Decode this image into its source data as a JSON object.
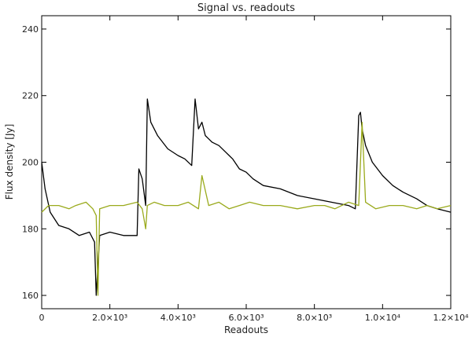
{
  "chart_data": {
    "type": "line",
    "title": "Signal vs. readouts",
    "xlabel": "Readouts",
    "ylabel": "Flux density [Jy]",
    "xlim": [
      0,
      12000
    ],
    "ylim": [
      156,
      244
    ],
    "grid": false,
    "legend": "none",
    "x_ticks": [
      {
        "value": 0,
        "label": "0"
      },
      {
        "value": 2000,
        "label": "2.0×10³"
      },
      {
        "value": 4000,
        "label": "4.0×10³"
      },
      {
        "value": 6000,
        "label": "6.0×10³"
      },
      {
        "value": 8000,
        "label": "8.0×10³"
      },
      {
        "value": 10000,
        "label": "1.0×10⁴"
      },
      {
        "value": 12000,
        "label": "1.2×10⁴"
      }
    ],
    "y_ticks": [
      {
        "value": 160,
        "label": "160"
      },
      {
        "value": 180,
        "label": "180"
      },
      {
        "value": 200,
        "label": "200"
      },
      {
        "value": 220,
        "label": "220"
      },
      {
        "value": 240,
        "label": "240"
      }
    ],
    "series": [
      {
        "color": "#000000",
        "x": [
          0,
          100,
          250,
          500,
          800,
          1100,
          1400,
          1550,
          1600,
          1700,
          2000,
          2400,
          2800,
          2850,
          2950,
          3050,
          3100,
          3200,
          3400,
          3700,
          4000,
          4200,
          4400,
          4500,
          4600,
          4700,
          4800,
          4900,
          5000,
          5200,
          5400,
          5500,
          5600,
          5800,
          6000,
          6200,
          6500,
          7000,
          7500,
          8000,
          8500,
          9000,
          9200,
          9300,
          9350,
          9400,
          9500,
          9700,
          10000,
          10300,
          10600,
          11000,
          11300,
          11600,
          12000
        ],
        "y": [
          200,
          192,
          185,
          181,
          180,
          178,
          179,
          176,
          160,
          178,
          179,
          178,
          178,
          198,
          195,
          187,
          219,
          212,
          208,
          204,
          202,
          201,
          199,
          219,
          210,
          212,
          208,
          207,
          206,
          205,
          203,
          202,
          201,
          198,
          197,
          195,
          193,
          192,
          190,
          189,
          188,
          187,
          186,
          214,
          215,
          210,
          205,
          200,
          196,
          193,
          191,
          189,
          187,
          186,
          185
        ]
      },
      {
        "color": "#9aaa1c",
        "x": [
          0,
          200,
          500,
          800,
          1000,
          1300,
          1500,
          1600,
          1650,
          1700,
          2000,
          2400,
          2800,
          2950,
          3050,
          3100,
          3300,
          3600,
          4000,
          4300,
          4600,
          4700,
          4900,
          5200,
          5500,
          5800,
          6100,
          6500,
          7000,
          7500,
          8000,
          8300,
          8600,
          9000,
          9300,
          9400,
          9500,
          9800,
          10200,
          10600,
          11000,
          11300,
          11600,
          12000
        ],
        "y": [
          185,
          187,
          187,
          186,
          187,
          188,
          186,
          184,
          160,
          186,
          187,
          187,
          188,
          186,
          180,
          187,
          188,
          187,
          187,
          188,
          186,
          196,
          187,
          188,
          186,
          187,
          188,
          187,
          187,
          186,
          187,
          187,
          186,
          188,
          187,
          212,
          188,
          186,
          187,
          187,
          186,
          187,
          186,
          187
        ]
      }
    ]
  }
}
